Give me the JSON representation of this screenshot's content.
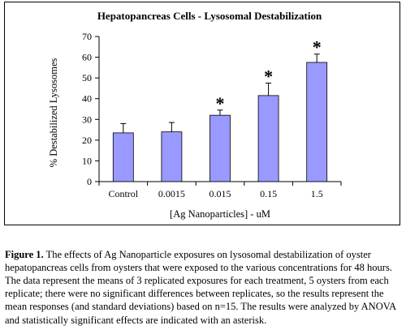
{
  "chart_data": {
    "type": "bar",
    "title": "Hepatopancreas Cells - Lysosomal Destabilization",
    "xlabel": "[Ag Nanoparticles] - uM",
    "ylabel": "% Destabilized Lysosomes",
    "categories": [
      "Control",
      "0.0015",
      "0.015",
      "0.15",
      "1.5"
    ],
    "values": [
      23.5,
      24,
      32,
      41.5,
      57.5
    ],
    "errors": [
      4.5,
      4.5,
      2.5,
      6,
      4
    ],
    "significant": [
      false,
      false,
      true,
      true,
      true
    ],
    "significance_marker": "*",
    "ylim": [
      0,
      70
    ],
    "yticks": [
      "0",
      "10",
      "20",
      "30",
      "40",
      "50",
      "60",
      "70"
    ],
    "grid": false,
    "bar_color": "#9999ff"
  },
  "caption": {
    "label": "Figure 1.",
    "text": "The effects of Ag Nanoparticle exposures on lysosomal destabilization of oyster hepatopancreas cells from oysters that were exposed to the various concentrations for 48 hours.  The data represent the means of 3 replicated exposures for each treatment, 5 oysters from each replicate; there were no significant differences between replicates, so the results represent the mean responses (and standard deviations) based on n=15.  The results were analyzed by ANOVA and statistically significant effects are indicated with an asterisk."
  }
}
